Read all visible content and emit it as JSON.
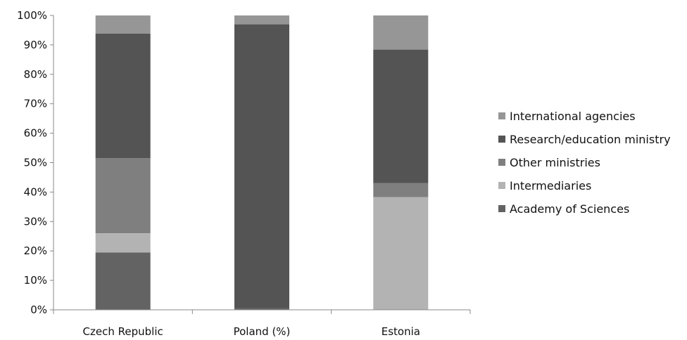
{
  "chart_data": {
    "type": "bar",
    "stacked": true,
    "categories": [
      "Czech Republic",
      "Poland (%)",
      "Estonia"
    ],
    "series": [
      {
        "name": "Academy of Sciences",
        "values": [
          19.5,
          0.5,
          0
        ],
        "color": "#636363"
      },
      {
        "name": "Intermediaries",
        "values": [
          6.5,
          0,
          38.3
        ],
        "color": "#b3b3b3"
      },
      {
        "name": "Other ministries",
        "values": [
          25.5,
          0,
          4.7
        ],
        "color": "#7f7f7f"
      },
      {
        "name": "Research/education ministry",
        "values": [
          42.3,
          96.5,
          45.4
        ],
        "color": "#545454"
      },
      {
        "name": "International agencies",
        "values": [
          6.2,
          3.0,
          11.6
        ],
        "color": "#969696"
      }
    ],
    "legend_order": [
      "International agencies",
      "Research/education ministry",
      "Other ministries",
      "Intermediaries",
      "Academy of Sciences"
    ],
    "ylim": [
      0,
      100
    ],
    "yticks": [
      "0%",
      "10%",
      "20%",
      "30%",
      "40%",
      "50%",
      "60%",
      "70%",
      "80%",
      "90%",
      "100%"
    ],
    "title": "",
    "xlabel": "",
    "ylabel": "",
    "grid": false,
    "legend_position": "right"
  }
}
